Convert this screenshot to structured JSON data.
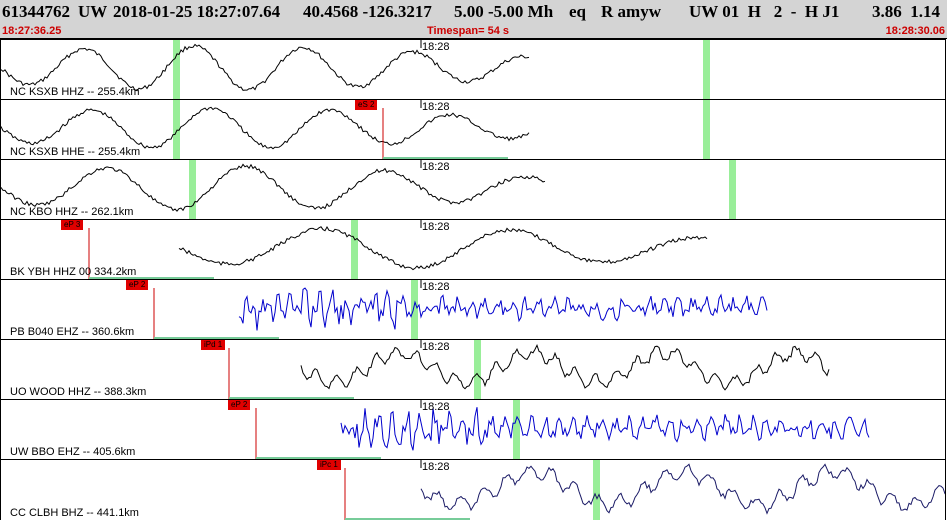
{
  "header": {
    "event_id": "61344762",
    "network": "UW",
    "datetime": "2018-01-25 18:27:07.64",
    "location": "40.4568 -126.3217",
    "depth_mag": "5.00 -5.00 Mh",
    "event_type": "eq",
    "review": "R amyw",
    "station_info": "UW 01  H   2  -  H J1",
    "values": "3.86  1.14"
  },
  "timebar": {
    "start_time": "18:27:36.25",
    "timespan": "Timespan=  54 s",
    "end_time": "18:28:30.06"
  },
  "colors": {
    "header_bg": "#d4d4d4",
    "time_text": "#cc0000",
    "pick_box": "#e00000",
    "green_marker": "#99ee99",
    "trace_black": "#000000",
    "trace_blue": "#0000cc",
    "trace_navy": "#1a1a66"
  },
  "panels": [
    {
      "label": "NC KSXB HHZ -- 255.4km",
      "tick": "18:28",
      "trace_color": "trace_black",
      "style": "smooth",
      "pick": null
    },
    {
      "label": "NC KSXB HHE -- 255.4km",
      "tick": "18:28",
      "trace_color": "trace_black",
      "style": "smooth",
      "pick": "eS 2"
    },
    {
      "label": "NC KBO HHZ -- 262.1km",
      "tick": "18:28",
      "trace_color": "trace_black",
      "style": "smooth",
      "pick": null
    },
    {
      "label": "BK YBH HHZ 00 334.2km",
      "tick": "18:28",
      "trace_color": "trace_black",
      "style": "smooth",
      "pick": "eP 3"
    },
    {
      "label": "PB B040 EHZ -- 360.6km",
      "tick": "18:28",
      "trace_color": "trace_blue",
      "style": "noisy",
      "pick": "eP 2"
    },
    {
      "label": "UO WOOD HHZ -- 388.3km",
      "tick": "18:28",
      "trace_color": "trace_black",
      "style": "mixed",
      "pick": "iPd 1"
    },
    {
      "label": "UW BBO EHZ -- 405.6km",
      "tick": "18:28",
      "trace_color": "trace_blue",
      "style": "noisy",
      "pick": "eP 2"
    },
    {
      "label": "CC CLBH BHZ -- 441.1km",
      "tick": "18:28",
      "trace_color": "trace_navy",
      "style": "mixed",
      "pick": "iPc 1"
    }
  ]
}
